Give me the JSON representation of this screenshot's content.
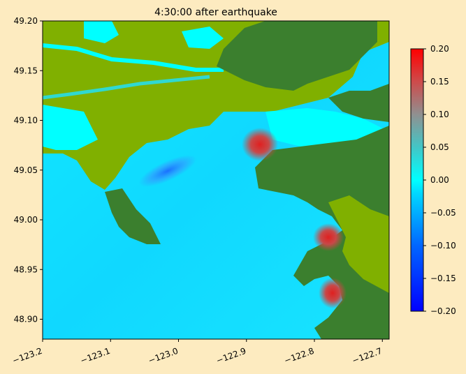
{
  "chart_data": {
    "type": "heatmap",
    "title": "4:30:00 after earthquake",
    "xlabel": "",
    "ylabel": "",
    "xlim": [
      -123.2,
      -122.69
    ],
    "ylim": [
      48.88,
      49.2
    ],
    "xticks": [
      -123.2,
      -123.1,
      -123.0,
      -122.9,
      -122.8,
      -122.7
    ],
    "xtick_labels": [
      "−123.2",
      "−123.1",
      "−123.0",
      "−122.9",
      "−122.8",
      "−122.7"
    ],
    "yticks": [
      48.9,
      48.95,
      49.0,
      49.05,
      49.1,
      49.15,
      49.2
    ],
    "ytick_labels": [
      "48.90",
      "48.95",
      "49.00",
      "49.05",
      "49.10",
      "49.15",
      "49.20"
    ],
    "colorbar": {
      "min": -0.2,
      "max": 0.2,
      "ticks": [
        -0.2,
        -0.15,
        -0.1,
        -0.05,
        0.0,
        0.05,
        0.1,
        0.15,
        0.2
      ],
      "tick_labels": [
        "−0.20",
        "−0.15",
        "−0.10",
        "−0.05",
        "0.00",
        "0.05",
        "0.10",
        "0.15",
        "0.20"
      ],
      "colormap": [
        "#0000ff",
        "#00b0ff",
        "#00ffff",
        "#d05050",
        "#ff0000"
      ]
    },
    "land_colors": {
      "lowland": "#80b000",
      "upland": "#3b7f2e"
    },
    "features": {
      "peak_positive_locations": [
        {
          "lon": -122.885,
          "lat": 49.075,
          "value": 0.2
        },
        {
          "lon": -122.77,
          "lat": 48.98,
          "value": 0.13
        },
        {
          "lon": -122.765,
          "lat": 48.925,
          "value": 0.2
        }
      ],
      "peak_negative_locations": [
        {
          "lon": -123.02,
          "lat": 49.04,
          "value": -0.07
        }
      ]
    }
  }
}
